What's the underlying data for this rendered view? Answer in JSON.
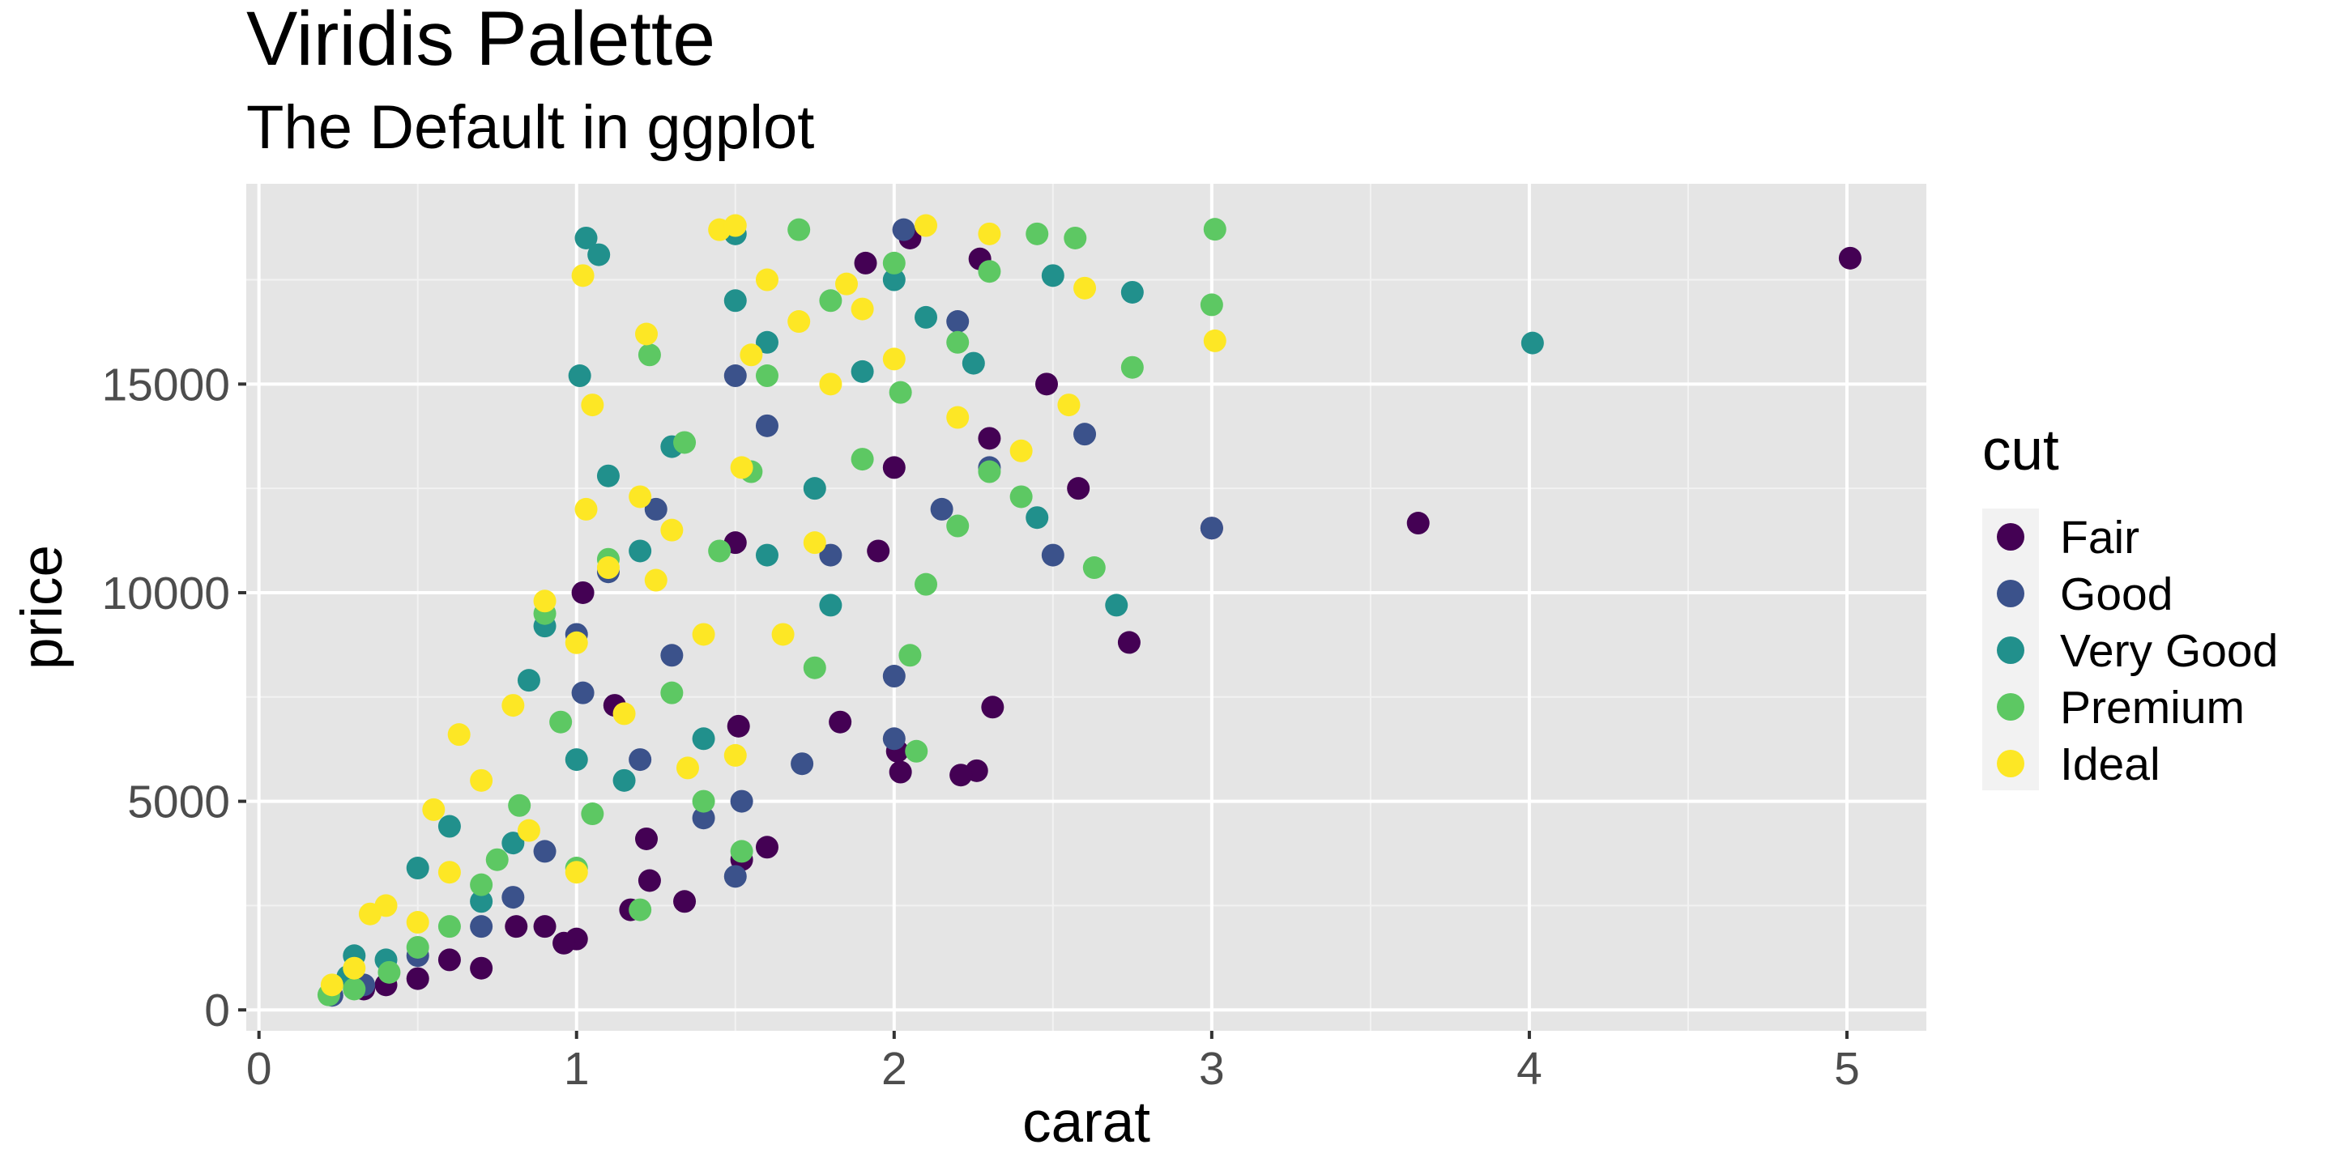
{
  "chart_data": {
    "type": "scatter",
    "title": "Viridis Palette",
    "subtitle": "The Default in ggplot",
    "xlabel": "carat",
    "ylabel": "price",
    "xlim": [
      -0.04,
      5.25
    ],
    "ylim": [
      -500,
      19800
    ],
    "x_ticks": [
      0,
      1,
      2,
      3,
      4,
      5
    ],
    "y_ticks": [
      0,
      5000,
      10000,
      15000
    ],
    "x_tick_labels": [
      "0",
      "1",
      "2",
      "3",
      "4",
      "5"
    ],
    "y_tick_labels": [
      "0",
      "5000",
      "10000",
      "15000"
    ],
    "grid": true,
    "legend": {
      "title": "cut",
      "position": "right"
    },
    "series": [
      {
        "name": "Fair",
        "color": "#440154",
        "points": [
          [
            5.01,
            18018
          ],
          [
            3.65,
            11668
          ],
          [
            3.0,
            11548
          ],
          [
            2.74,
            8807
          ],
          [
            2.58,
            12500
          ],
          [
            2.31,
            7257
          ],
          [
            2.26,
            5733
          ],
          [
            2.21,
            5629
          ],
          [
            2.02,
            5700
          ],
          [
            2.01,
            6200
          ],
          [
            1.83,
            6900
          ],
          [
            1.5,
            11200
          ],
          [
            1.51,
            6800
          ],
          [
            1.52,
            3600
          ],
          [
            1.34,
            2600
          ],
          [
            1.23,
            3100
          ],
          [
            1.17,
            2400
          ],
          [
            1.0,
            1700
          ],
          [
            0.96,
            1600
          ],
          [
            0.9,
            2000
          ],
          [
            0.7,
            1000
          ],
          [
            0.5,
            750
          ],
          [
            0.33,
            500
          ],
          [
            1.02,
            10000
          ],
          [
            1.91,
            17900
          ],
          [
            2.48,
            15000
          ],
          [
            2.3,
            13700
          ],
          [
            1.22,
            4100
          ],
          [
            1.12,
            7300
          ],
          [
            0.81,
            2000
          ],
          [
            0.6,
            1200
          ],
          [
            0.4,
            600
          ],
          [
            1.6,
            3900
          ],
          [
            2.0,
            13000
          ],
          [
            1.95,
            11000
          ],
          [
            2.05,
            18500
          ],
          [
            2.27,
            18000
          ]
        ]
      },
      {
        "name": "Good",
        "color": "#3b528b",
        "points": [
          [
            3.0,
            11548
          ],
          [
            2.6,
            13800
          ],
          [
            2.5,
            10900
          ],
          [
            2.3,
            13000
          ],
          [
            2.03,
            18700
          ],
          [
            2.0,
            8000
          ],
          [
            2.0,
            6500
          ],
          [
            1.5,
            15200
          ],
          [
            1.5,
            3200
          ],
          [
            1.52,
            5000
          ],
          [
            1.71,
            5900
          ],
          [
            1.02,
            7600
          ],
          [
            1.0,
            9000
          ],
          [
            0.9,
            3800
          ],
          [
            0.7,
            2000
          ],
          [
            0.5,
            1300
          ],
          [
            0.33,
            600
          ],
          [
            1.2,
            6000
          ],
          [
            1.3,
            8500
          ],
          [
            1.8,
            10900
          ],
          [
            2.2,
            16500
          ],
          [
            1.4,
            4600
          ],
          [
            1.1,
            10500
          ],
          [
            0.8,
            2700
          ],
          [
            0.23,
            350
          ],
          [
            1.6,
            14000
          ],
          [
            2.15,
            12000
          ],
          [
            1.25,
            12000
          ]
        ]
      },
      {
        "name": "Very Good",
        "color": "#21908c",
        "points": [
          [
            4.01,
            15984
          ],
          [
            2.75,
            17200
          ],
          [
            2.45,
            11800
          ],
          [
            2.7,
            9700
          ],
          [
            1.03,
            18500
          ],
          [
            1.07,
            18100
          ],
          [
            1.01,
            15200
          ],
          [
            0.85,
            7900
          ],
          [
            0.9,
            9200
          ],
          [
            0.6,
            4400
          ],
          [
            0.5,
            3400
          ],
          [
            0.28,
            800
          ],
          [
            0.3,
            1300
          ],
          [
            0.7,
            2600
          ],
          [
            1.0,
            6000
          ],
          [
            1.2,
            11000
          ],
          [
            1.3,
            13500
          ],
          [
            1.5,
            17000
          ],
          [
            1.5,
            18600
          ],
          [
            1.6,
            16000
          ],
          [
            1.75,
            12500
          ],
          [
            1.9,
            15300
          ],
          [
            2.0,
            17500
          ],
          [
            2.1,
            16600
          ],
          [
            2.25,
            15500
          ],
          [
            2.5,
            17600
          ],
          [
            1.8,
            9700
          ],
          [
            1.4,
            6500
          ],
          [
            1.15,
            5500
          ],
          [
            0.8,
            4000
          ],
          [
            0.4,
            1200
          ],
          [
            1.1,
            12800
          ],
          [
            1.6,
            10900
          ]
        ]
      },
      {
        "name": "Premium",
        "color": "#5dc863",
        "points": [
          [
            3.01,
            18710
          ],
          [
            3.0,
            16900
          ],
          [
            2.75,
            15400
          ],
          [
            2.63,
            10600
          ],
          [
            2.57,
            18500
          ],
          [
            2.4,
            12300
          ],
          [
            2.2,
            11600
          ],
          [
            2.1,
            10200
          ],
          [
            2.07,
            6200
          ],
          [
            2.05,
            8500
          ],
          [
            1.7,
            18700
          ],
          [
            1.52,
            3800
          ],
          [
            1.34,
            13600
          ],
          [
            1.23,
            15700
          ],
          [
            1.2,
            2400
          ],
          [
            0.95,
            6900
          ],
          [
            0.82,
            4900
          ],
          [
            0.7,
            3000
          ],
          [
            0.6,
            2000
          ],
          [
            0.5,
            1500
          ],
          [
            0.41,
            900
          ],
          [
            0.22,
            360
          ],
          [
            0.3,
            500
          ],
          [
            0.9,
            9500
          ],
          [
            1.0,
            3400
          ],
          [
            1.1,
            10800
          ],
          [
            1.3,
            7600
          ],
          [
            1.45,
            11000
          ],
          [
            1.6,
            15200
          ],
          [
            1.8,
            17000
          ],
          [
            1.9,
            13200
          ],
          [
            2.0,
            17900
          ],
          [
            2.2,
            16000
          ],
          [
            2.3,
            17700
          ],
          [
            2.45,
            18600
          ],
          [
            1.4,
            5000
          ],
          [
            1.75,
            8200
          ],
          [
            0.75,
            3600
          ],
          [
            1.05,
            4700
          ],
          [
            1.55,
            12900
          ],
          [
            2.02,
            14800
          ],
          [
            2.3,
            12900
          ]
        ]
      },
      {
        "name": "Ideal",
        "color": "#fde725",
        "points": [
          [
            3.01,
            16037
          ],
          [
            2.55,
            14500
          ],
          [
            2.6,
            17300
          ],
          [
            2.3,
            18600
          ],
          [
            2.1,
            18800
          ],
          [
            1.45,
            18700
          ],
          [
            1.5,
            18800
          ],
          [
            1.02,
            17600
          ],
          [
            1.05,
            14500
          ],
          [
            1.22,
            16200
          ],
          [
            1.03,
            12000
          ],
          [
            0.9,
            9800
          ],
          [
            0.8,
            7300
          ],
          [
            0.7,
            5500
          ],
          [
            0.63,
            6600
          ],
          [
            0.55,
            4800
          ],
          [
            0.4,
            2500
          ],
          [
            0.35,
            2300
          ],
          [
            0.3,
            1000
          ],
          [
            0.23,
            600
          ],
          [
            1.2,
            12300
          ],
          [
            1.3,
            11500
          ],
          [
            1.1,
            10600
          ],
          [
            1.0,
            8800
          ],
          [
            1.25,
            10300
          ],
          [
            1.4,
            9000
          ],
          [
            1.55,
            15700
          ],
          [
            1.6,
            17500
          ],
          [
            1.7,
            16500
          ],
          [
            1.8,
            15000
          ],
          [
            1.9,
            16800
          ],
          [
            2.0,
            15600
          ],
          [
            2.2,
            14200
          ],
          [
            1.75,
            11200
          ],
          [
            1.65,
            9000
          ],
          [
            1.52,
            13000
          ],
          [
            1.5,
            6100
          ],
          [
            1.0,
            3300
          ],
          [
            0.85,
            4300
          ],
          [
            1.15,
            7100
          ],
          [
            1.35,
            5800
          ],
          [
            2.4,
            13400
          ],
          [
            1.85,
            17400
          ],
          [
            0.5,
            2100
          ],
          [
            0.6,
            3300
          ]
        ]
      }
    ]
  }
}
